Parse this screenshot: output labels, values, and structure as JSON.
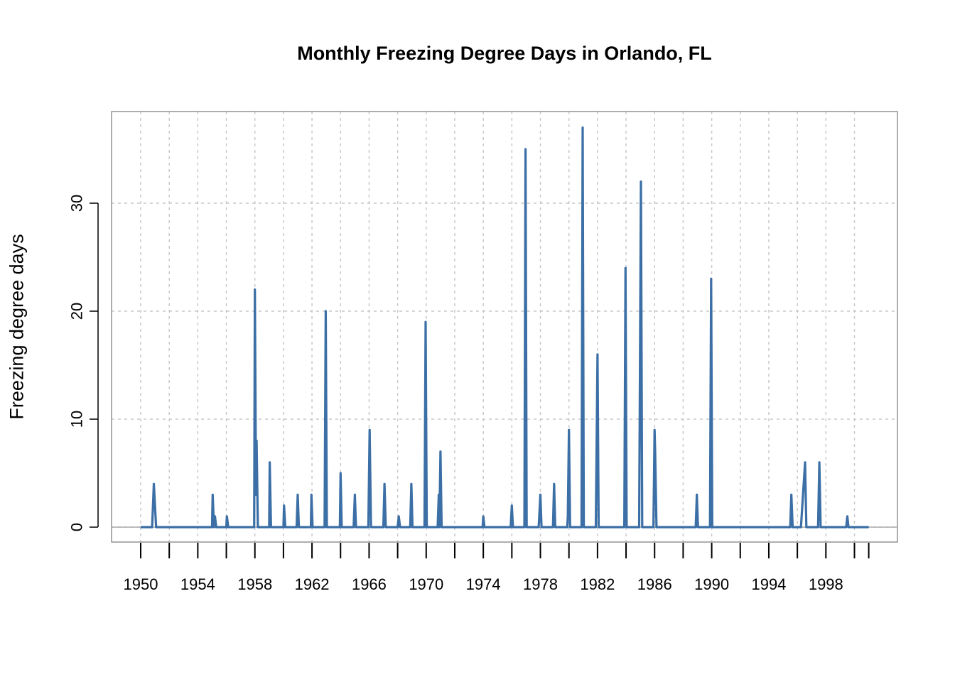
{
  "chart_data": {
    "type": "line",
    "title": "Monthly Freezing Degree Days in Orlando, FL",
    "xlabel": "",
    "ylabel": "Freezing degree days",
    "xlim": [
      1950,
      2001.5
    ],
    "ylim": [
      0,
      37
    ],
    "grid": true,
    "line_color": "#3b6fa6",
    "x_tick_labels": [
      "1950",
      "1954",
      "1958",
      "1962",
      "1966",
      "1970",
      "1974",
      "1978",
      "1982",
      "1986",
      "1990",
      "1994",
      "1998"
    ],
    "y_tick_labels": [
      "0",
      "10",
      "20",
      "30"
    ],
    "series": [
      {
        "name": "",
        "points": [
          [
            1950.0,
            0
          ],
          [
            1950.8,
            0
          ],
          [
            1950.92,
            4
          ],
          [
            1951.08,
            0
          ],
          [
            1955.0,
            0
          ],
          [
            1955.04,
            3
          ],
          [
            1955.13,
            0
          ],
          [
            1955.2,
            1
          ],
          [
            1955.29,
            0
          ],
          [
            1956.0,
            0
          ],
          [
            1956.04,
            1
          ],
          [
            1956.13,
            0
          ],
          [
            1957.95,
            0
          ],
          [
            1958.0,
            22
          ],
          [
            1958.08,
            3
          ],
          [
            1958.12,
            8
          ],
          [
            1958.21,
            0
          ],
          [
            1959.0,
            0
          ],
          [
            1959.04,
            6
          ],
          [
            1959.13,
            0
          ],
          [
            1960.0,
            0
          ],
          [
            1960.04,
            2
          ],
          [
            1960.13,
            0
          ],
          [
            1960.92,
            0
          ],
          [
            1961.0,
            3
          ],
          [
            1961.08,
            0
          ],
          [
            1961.92,
            0
          ],
          [
            1961.96,
            3
          ],
          [
            1962.04,
            0
          ],
          [
            1962.88,
            0
          ],
          [
            1962.96,
            20
          ],
          [
            1963.04,
            0
          ],
          [
            1963.95,
            0
          ],
          [
            1964.0,
            5
          ],
          [
            1964.08,
            0
          ],
          [
            1964.92,
            0
          ],
          [
            1965.0,
            3
          ],
          [
            1965.08,
            0
          ],
          [
            1965.95,
            0
          ],
          [
            1966.04,
            9
          ],
          [
            1966.13,
            0
          ],
          [
            1967.0,
            0
          ],
          [
            1967.08,
            4
          ],
          [
            1967.17,
            0
          ],
          [
            1968.0,
            0
          ],
          [
            1968.08,
            1
          ],
          [
            1968.17,
            0
          ],
          [
            1968.88,
            0
          ],
          [
            1968.96,
            4
          ],
          [
            1969.04,
            0
          ],
          [
            1969.88,
            0
          ],
          [
            1969.96,
            19
          ],
          [
            1970.04,
            0
          ],
          [
            1970.8,
            0
          ],
          [
            1970.88,
            3
          ],
          [
            1970.92,
            0
          ],
          [
            1971.0,
            7
          ],
          [
            1971.08,
            0
          ],
          [
            1973.95,
            0
          ],
          [
            1974.0,
            1
          ],
          [
            1974.08,
            0
          ],
          [
            1975.92,
            0
          ],
          [
            1976.0,
            2
          ],
          [
            1976.08,
            0
          ],
          [
            1976.88,
            0
          ],
          [
            1976.96,
            35
          ],
          [
            1977.04,
            0
          ],
          [
            1977.88,
            0
          ],
          [
            1978.0,
            3
          ],
          [
            1978.08,
            0
          ],
          [
            1978.88,
            0
          ],
          [
            1978.96,
            4
          ],
          [
            1979.04,
            0
          ],
          [
            1979.88,
            0
          ],
          [
            1979.92,
            1
          ],
          [
            1980.0,
            9
          ],
          [
            1980.08,
            0
          ],
          [
            1980.88,
            0
          ],
          [
            1980.96,
            37
          ],
          [
            1981.04,
            0
          ],
          [
            1981.88,
            0
          ],
          [
            1982.0,
            16
          ],
          [
            1982.08,
            0
          ],
          [
            1983.88,
            0
          ],
          [
            1983.96,
            24
          ],
          [
            1984.04,
            0
          ],
          [
            1984.92,
            0
          ],
          [
            1985.04,
            32
          ],
          [
            1985.13,
            0
          ],
          [
            1985.92,
            0
          ],
          [
            1986.0,
            9
          ],
          [
            1986.04,
            7
          ],
          [
            1986.13,
            0
          ],
          [
            1988.88,
            0
          ],
          [
            1988.96,
            3
          ],
          [
            1989.04,
            0
          ],
          [
            1989.88,
            0
          ],
          [
            1989.96,
            23
          ],
          [
            1990.04,
            0
          ],
          [
            1995.5,
            0
          ],
          [
            1995.58,
            3
          ],
          [
            1995.67,
            0
          ],
          [
            1996.25,
            0
          ],
          [
            1996.54,
            6
          ],
          [
            1996.63,
            0
          ],
          [
            1997.45,
            0
          ],
          [
            1997.54,
            6
          ],
          [
            1997.63,
            0
          ],
          [
            1999.42,
            0
          ],
          [
            1999.5,
            1
          ],
          [
            1999.58,
            0
          ],
          [
            2001.0,
            0
          ]
        ]
      }
    ]
  }
}
